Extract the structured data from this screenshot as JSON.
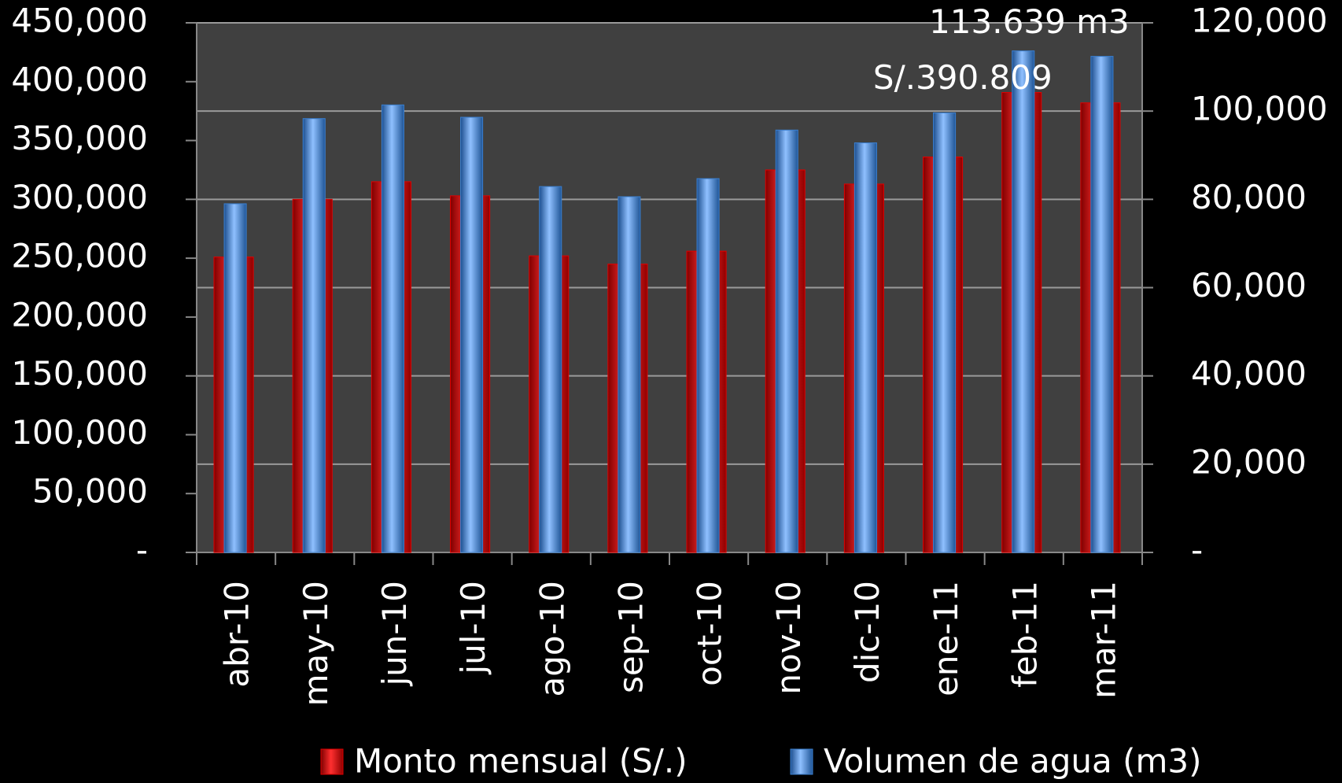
{
  "chart_data": {
    "type": "bar",
    "categories": [
      "abr-10",
      "may-10",
      "jun-10",
      "jul-10",
      "ago-10",
      "sep-10",
      "oct-10",
      "nov-10",
      "dic-10",
      "ene-11",
      "feb-11",
      "mar-11"
    ],
    "series": [
      {
        "name": "Monto mensual (S/.)",
        "color": "#e00000",
        "axis": "y",
        "values": [
          251000,
          300000,
          315000,
          303000,
          252000,
          245000,
          256000,
          325000,
          313000,
          336000,
          390809,
          382000
        ],
        "value_labels": [
          null,
          null,
          null,
          null,
          null,
          null,
          null,
          null,
          null,
          null,
          "S/.390.809",
          null
        ]
      },
      {
        "name": "Volumen de agua (m3)",
        "color": "#3a7fd0",
        "axis": "y2",
        "values": [
          79000,
          98300,
          101400,
          98600,
          82900,
          80600,
          84700,
          95700,
          92800,
          99600,
          113639,
          112400
        ],
        "value_labels": [
          null,
          null,
          null,
          null,
          null,
          null,
          null,
          null,
          null,
          null,
          "113.639 m3",
          null
        ]
      }
    ],
    "ylim": [
      0,
      450000
    ],
    "yticks": [
      {
        "value": 0,
        "label": "-"
      },
      {
        "value": 50000,
        "label": "50,000"
      },
      {
        "value": 100000,
        "label": "100,000"
      },
      {
        "value": 150000,
        "label": "150,000"
      },
      {
        "value": 200000,
        "label": "200,000"
      },
      {
        "value": 250000,
        "label": "250,000"
      },
      {
        "value": 300000,
        "label": "300,000"
      },
      {
        "value": 350000,
        "label": "350,000"
      },
      {
        "value": 400000,
        "label": "400,000"
      },
      {
        "value": 450000,
        "label": "450,000"
      }
    ],
    "y2lim": [
      0,
      120000
    ],
    "y2ticks": [
      {
        "value": 0,
        "label": "-"
      },
      {
        "value": 20000,
        "label": "20,000"
      },
      {
        "value": 40000,
        "label": "40,000"
      },
      {
        "value": 60000,
        "label": "60,000"
      },
      {
        "value": 80000,
        "label": "80,000"
      },
      {
        "value": 100000,
        "label": "100,000"
      },
      {
        "value": 120000,
        "label": "120,000"
      }
    ],
    "grid": true,
    "legend": "bottom"
  }
}
